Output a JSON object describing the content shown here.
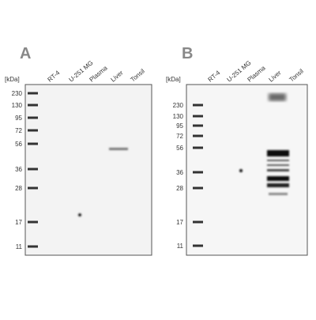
{
  "panels": [
    {
      "label": "A",
      "unit": "[kDa]",
      "lanes": [
        "RT-4",
        "U-251 MG",
        "Plasma",
        "Liver",
        "Tonsil"
      ],
      "markers": [
        230,
        130,
        95,
        72,
        56,
        36,
        28,
        17,
        11
      ]
    },
    {
      "label": "B",
      "unit": "[kDa]",
      "lanes": [
        "RT-4",
        "U-251 MG",
        "Plasma",
        "Liver",
        "Tonsil"
      ],
      "markers": [
        230,
        130,
        95,
        72,
        56,
        36,
        28,
        17,
        11
      ]
    }
  ]
}
